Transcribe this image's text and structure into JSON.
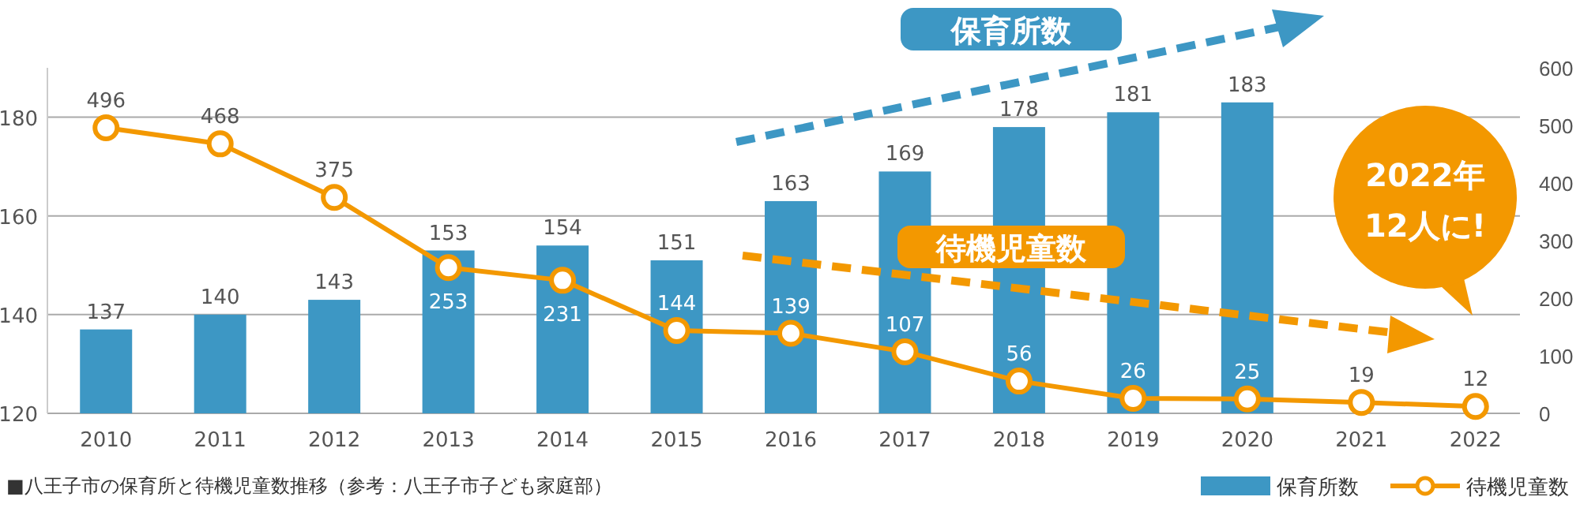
{
  "chart_data": {
    "type": "bar",
    "categories": [
      "2010",
      "2011",
      "2012",
      "2013",
      "2014",
      "2015",
      "2016",
      "2017",
      "2018",
      "2019",
      "2020",
      "2021",
      "2022"
    ],
    "series": [
      {
        "name": "保育所数",
        "color": "#3d97c4",
        "values": [
          137,
          140,
          143,
          153,
          154,
          151,
          163,
          169,
          178,
          181,
          183,
          null,
          null
        ]
      },
      {
        "name": "待機児童数",
        "type": "line",
        "axis": "y2",
        "color": "#f39800",
        "marker": "circle",
        "values": [
          496,
          468,
          375,
          253,
          231,
          144,
          139,
          107,
          56,
          26,
          25,
          19,
          12
        ]
      }
    ],
    "ylim": [
      120,
      190
    ],
    "yticks": [
      120,
      140,
      160,
      180
    ],
    "y2lim": [
      0,
      600
    ],
    "y2ticks": [
      0,
      100,
      200,
      300,
      400,
      500,
      600
    ],
    "grid": "y",
    "data_labels": true,
    "legend": "bottom right",
    "annotations": [
      "保育所数",
      "待機児童数",
      "2022年",
      "12人に!",
      "■八王子市の保育所と待機児童数推移（参考：八王子市子ども家庭部）"
    ]
  }
}
